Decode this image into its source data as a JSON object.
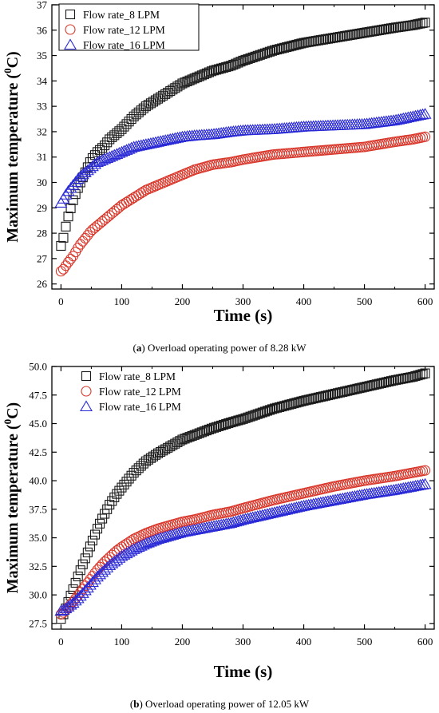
{
  "chart_data": [
    {
      "type": "scatter",
      "panel": "a",
      "caption_letter": "a",
      "caption_text": "Overload operating power of 8.28 kW",
      "xlabel": "Time (s)",
      "ylabel": "Maximum temperature (",
      "ylabel_sup": "0",
      "ylabel_end": "C)",
      "xlim": [
        -15,
        615
      ],
      "ylim": [
        25.8,
        37
      ],
      "xticks": [
        0,
        100,
        200,
        300,
        400,
        500,
        600
      ],
      "yticks": [
        26,
        27,
        28,
        29,
        30,
        31,
        32,
        33,
        34,
        35,
        36,
        37
      ],
      "ytick_decimals": 0,
      "legend_position": "top-left",
      "series": [
        {
          "name": "Flow rate_8 LPM",
          "marker": "square",
          "color": "#1a1a1a",
          "x": [
            0,
            5,
            10,
            20,
            30,
            40,
            50,
            60,
            70,
            80,
            90,
            100,
            120,
            140,
            160,
            180,
            200,
            220,
            250,
            280,
            300,
            350,
            400,
            450,
            500,
            550,
            580,
            600
          ],
          "y": [
            27.5,
            27.9,
            28.5,
            29.3,
            29.9,
            30.4,
            30.9,
            31.2,
            31.4,
            31.7,
            31.9,
            32.1,
            32.6,
            33.0,
            33.3,
            33.6,
            33.9,
            34.1,
            34.4,
            34.6,
            34.8,
            35.2,
            35.5,
            35.7,
            35.9,
            36.1,
            36.2,
            36.3
          ]
        },
        {
          "name": "Flow rate_12 LPM",
          "marker": "circle",
          "color": "#d9382c",
          "x": [
            0,
            5,
            10,
            20,
            30,
            40,
            50,
            60,
            70,
            80,
            90,
            100,
            120,
            140,
            160,
            180,
            200,
            220,
            250,
            280,
            300,
            350,
            400,
            450,
            500,
            550,
            580,
            600
          ],
          "y": [
            26.5,
            26.6,
            26.8,
            27.1,
            27.5,
            27.8,
            28.1,
            28.3,
            28.5,
            28.7,
            28.9,
            29.1,
            29.4,
            29.7,
            29.9,
            30.1,
            30.3,
            30.5,
            30.7,
            30.8,
            30.9,
            31.1,
            31.2,
            31.3,
            31.4,
            31.6,
            31.7,
            31.8
          ]
        },
        {
          "name": "Flow rate_16 LPM",
          "marker": "triangle",
          "color": "#2b2bd6",
          "x": [
            0,
            5,
            10,
            20,
            30,
            40,
            50,
            60,
            70,
            80,
            90,
            100,
            120,
            140,
            160,
            180,
            200,
            220,
            250,
            280,
            300,
            350,
            400,
            450,
            500,
            550,
            580,
            600
          ],
          "y": [
            29.2,
            29.4,
            29.6,
            29.9,
            30.2,
            30.4,
            30.6,
            30.8,
            30.9,
            31.0,
            31.1,
            31.2,
            31.4,
            31.5,
            31.6,
            31.7,
            31.8,
            31.85,
            31.9,
            32.0,
            32.05,
            32.1,
            32.2,
            32.25,
            32.3,
            32.45,
            32.6,
            32.7
          ]
        }
      ]
    },
    {
      "type": "scatter",
      "panel": "b",
      "caption_letter": "b",
      "caption_text": "Overload operating power of 12.05 kW",
      "xlabel": "Time (s)",
      "ylabel": "Maximum temperature (",
      "ylabel_sup": "0",
      "ylabel_end": "C)",
      "xlim": [
        -15,
        615
      ],
      "ylim": [
        27,
        50
      ],
      "xticks": [
        0,
        100,
        200,
        300,
        400,
        500,
        600
      ],
      "yticks": [
        27.5,
        30.0,
        32.5,
        35.0,
        37.5,
        40.0,
        42.5,
        45.0,
        47.5,
        50.0
      ],
      "ytick_decimals": 1,
      "legend_position": "top-left",
      "series": [
        {
          "name": "Flow rate_8 LPM",
          "marker": "square",
          "color": "#1a1a1a",
          "x": [
            0,
            5,
            10,
            20,
            30,
            40,
            50,
            60,
            70,
            80,
            90,
            100,
            120,
            140,
            160,
            180,
            200,
            220,
            250,
            280,
            300,
            350,
            400,
            450,
            500,
            550,
            580,
            600
          ],
          "y": [
            27.9,
            28.4,
            29.1,
            30.5,
            31.9,
            33.2,
            34.5,
            35.8,
            36.9,
            37.9,
            38.7,
            39.4,
            40.7,
            41.7,
            42.4,
            43.0,
            43.6,
            44.0,
            44.6,
            45.1,
            45.4,
            46.3,
            47.0,
            47.6,
            48.2,
            48.8,
            49.1,
            49.4
          ]
        },
        {
          "name": "Flow rate_12 LPM",
          "marker": "circle",
          "color": "#d9382c",
          "x": [
            0,
            5,
            10,
            20,
            30,
            40,
            50,
            60,
            70,
            80,
            90,
            100,
            120,
            140,
            160,
            180,
            200,
            220,
            250,
            280,
            300,
            350,
            400,
            450,
            500,
            550,
            580,
            600
          ],
          "y": [
            28.3,
            28.5,
            28.8,
            29.4,
            30.1,
            30.8,
            31.5,
            32.2,
            32.8,
            33.3,
            33.8,
            34.2,
            34.9,
            35.4,
            35.8,
            36.1,
            36.4,
            36.6,
            37.0,
            37.3,
            37.6,
            38.3,
            38.9,
            39.5,
            40.0,
            40.4,
            40.7,
            40.9
          ]
        },
        {
          "name": "Flow rate_16 LPM",
          "marker": "triangle",
          "color": "#2b2bd6",
          "x": [
            0,
            5,
            10,
            20,
            30,
            40,
            50,
            60,
            70,
            80,
            90,
            100,
            120,
            140,
            160,
            180,
            200,
            220,
            250,
            280,
            300,
            350,
            400,
            450,
            500,
            550,
            580,
            600
          ],
          "y": [
            28.6,
            28.7,
            28.9,
            29.3,
            29.8,
            30.4,
            31.0,
            31.6,
            32.1,
            32.6,
            33.0,
            33.4,
            34.0,
            34.5,
            34.9,
            35.2,
            35.5,
            35.7,
            36.0,
            36.3,
            36.6,
            37.2,
            37.8,
            38.3,
            38.8,
            39.2,
            39.5,
            39.7
          ]
        }
      ]
    }
  ]
}
